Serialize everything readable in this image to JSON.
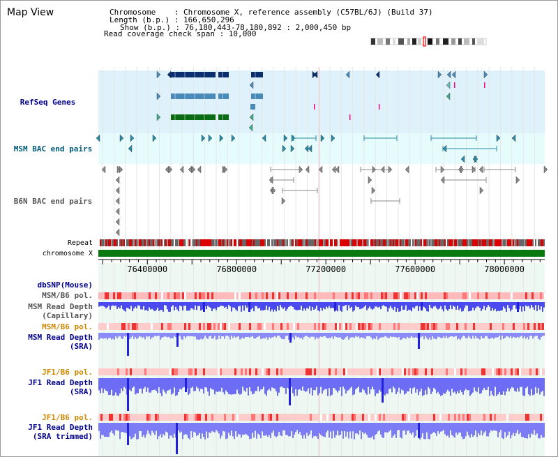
{
  "title": "Map View",
  "info": {
    "chromosome_line": "Chromosome    : Chromosome X, reference assembly (C57BL/6J) (Build 37)",
    "length_line": "Length (b.p.) : 166,650,296",
    "show_line": "Show (b.p.) : 76,180,443-78,180,892 : 2,000,450 bp",
    "coverage_line": "Read coverage check span : 10,000"
  },
  "tracks": {
    "refseq": "RefSeq Genes",
    "msm_bac": "MSM BAC end pairs",
    "b6n_bac": "B6N BAC end pairs",
    "repeat": "Repeat",
    "chromosome": "chromosome X",
    "dbsnp": "dbSNP(Mouse)",
    "msm_b6_pol_1": "MSM/B6 pol.",
    "msm_depth_cap": "MSM Read Depth\n(Capillary)",
    "msm_b6_pol_2": "MSM/B6 pol.",
    "msm_depth_sra": "MSM Read Depth\n(SRA)",
    "jf1_b6_pol_1": "JF1/B6 pol.",
    "jf1_depth_sra": "JF1 Read Depth\n(SRA)",
    "jf1_b6_pol_2": "JF1/B6 pol.",
    "jf1_depth_trim": "JF1 Read Depth\n(SRA trimmed)"
  },
  "axis": {
    "ticks": [
      "76400000",
      "76800000",
      "77200000",
      "77600000",
      "78000000"
    ],
    "tick_values": [
      76400000,
      76800000,
      77200000,
      77600000,
      78000000
    ],
    "range": [
      76180443,
      78180892
    ]
  },
  "colors": {
    "refseq_bg": "#dff1fb",
    "msm_bg": "#e6fcfc",
    "gene_dark": "#0a2e6e",
    "gene_mid": "#4a8ab8",
    "gene_green": "#0a6b14",
    "chrom_green": "#0a7a10",
    "depth_blue": "#6c6cf4",
    "label_blue": "#00008b",
    "label_gray": "#555555",
    "label_orange": "#cc8800",
    "label_teal": "#005a78"
  }
}
